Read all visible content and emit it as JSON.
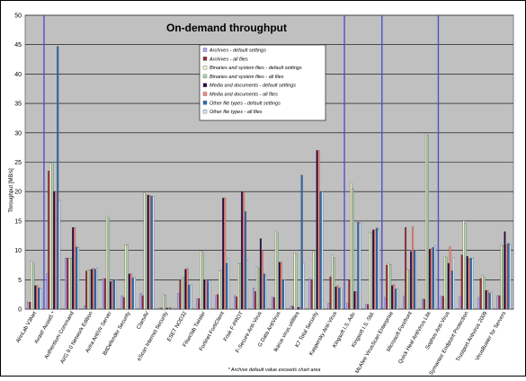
{
  "chart_data": {
    "type": "bar",
    "title": "On-demand throughput",
    "xlabel": "",
    "ylabel": "Throughput [MB/s]",
    "ylim": [
      0,
      50
    ],
    "yticks": [
      0,
      5,
      10,
      15,
      20,
      25,
      30,
      35,
      40,
      45,
      50
    ],
    "grid": true,
    "legend_position": "top-center",
    "footnote": "* Archive default value exceeds chart area",
    "categories": [
      "AhnLab V3Net",
      "Avast! Avast5 *",
      "Authentium Command",
      "AVG 9.0 Network Edition",
      "Avira AntiVir Server",
      "BitDefender Security",
      "ClamAV",
      "eScan Internet Security",
      "ESET NOD32",
      "Filseclab Twister",
      "Fortinet FortiClient",
      "Frisk F-PROT",
      "F-Secure Anti-Virus",
      "G Data AntiVirus",
      "Ikarus virus.utilities",
      "K7 Total Security",
      "Kaspersky Anti-Virus",
      "Kingsoft I.S. Adv.",
      "Kingsoft I.S. Std.",
      "McAfee VirusScan Enterprise",
      "Microsoft Forefront",
      "Quick Heal AntiVirus Lite",
      "Sophos Anti-Virus",
      "Symantec Endpoint Protection",
      "Trustport Antivirus 2009",
      "VirusBuster for Servers"
    ],
    "series": [
      {
        "name": "Archives - default settings",
        "color": "#b3a6ff",
        "values": [
          1.2,
          6.0,
          8.7,
          0.6,
          5.2,
          2.3,
          2.7,
          0.2,
          2.7,
          1.8,
          2.3,
          2.3,
          3.6,
          2.0,
          0.5,
          5.2,
          1.0,
          1.0,
          0.8,
          2.0,
          2.2,
          1.7,
          2.2,
          2.1,
          2.0,
          2.3
        ]
      },
      {
        "name": "Archives - all files",
        "color": "#9c2c3c",
        "values": [
          1.2,
          23.5,
          8.7,
          6.5,
          5.2,
          2.0,
          2.3,
          0.2,
          4.9,
          1.8,
          2.5,
          2.1,
          3.0,
          2.0,
          0.5,
          5.0,
          5.5,
          4.9,
          0.8,
          7.5,
          13.9,
          1.7,
          2.2,
          9.2,
          5.2,
          2.3
        ]
      },
      {
        "name": "Binaries and system files - default settings",
        "color": "#f2f2cc",
        "values": [
          8.2,
          24.9,
          8.7,
          6.6,
          15.8,
          10.9,
          19.8,
          2.5,
          5.2,
          9.9,
          6.5,
          7.7,
          7.3,
          13.3,
          9.6,
          9.8,
          9.2,
          21.5,
          13.1,
          7.8,
          6.8,
          29.9,
          9.0,
          15.0,
          5.7,
          11.0
        ]
      },
      {
        "name": "Binaries and system files - all files",
        "color": "#aed7b5",
        "values": [
          7.7,
          25.0,
          8.7,
          6.7,
          15.5,
          11.0,
          19.5,
          2.4,
          5.5,
          9.7,
          6.7,
          7.8,
          7.0,
          13.0,
          9.4,
          10.0,
          8.8,
          20.5,
          12.9,
          7.6,
          6.6,
          29.6,
          8.8,
          14.6,
          5.4,
          10.8
        ]
      },
      {
        "name": "Media and documents - default settings",
        "color": "#2a0d4a",
        "values": [
          4.0,
          20.0,
          13.9,
          6.8,
          4.7,
          6.0,
          19.4,
          0.2,
          6.8,
          5.0,
          18.9,
          20.0,
          12.0,
          8.0,
          0.3,
          27.0,
          3.8,
          3.0,
          13.5,
          4.0,
          9.8,
          10.2,
          7.8,
          9.0,
          3.2,
          13.2
        ]
      },
      {
        "name": "Media and documents - all files",
        "color": "#ff8a7a",
        "values": [
          4.0,
          20.0,
          13.9,
          6.9,
          4.7,
          6.0,
          19.4,
          0.2,
          6.9,
          5.0,
          18.9,
          20.0,
          10.0,
          8.0,
          0.3,
          27.0,
          4.0,
          3.0,
          13.5,
          4.2,
          14.0,
          10.3,
          10.6,
          8.5,
          3.2,
          11.0
        ]
      },
      {
        "name": "Other file types - default settings",
        "color": "#2e6fb5",
        "values": [
          3.6,
          44.7,
          10.6,
          6.8,
          5.0,
          5.3,
          19.2,
          0.2,
          4.1,
          4.8,
          7.8,
          16.6,
          6.0,
          5.0,
          22.8,
          20.0,
          3.6,
          14.8,
          13.8,
          3.4,
          10.0,
          10.5,
          6.5,
          8.7,
          2.7,
          11.2
        ]
      },
      {
        "name": "Other file types - all files",
        "color": "#cde9ff",
        "values": [
          3.5,
          18.5,
          10.5,
          6.9,
          5.0,
          5.4,
          19.2,
          0.2,
          4.2,
          4.9,
          8.7,
          8.4,
          5.8,
          5.0,
          7.8,
          20.0,
          3.6,
          14.6,
          13.5,
          3.5,
          10.0,
          10.8,
          8.8,
          8.6,
          2.9,
          11.0
        ]
      }
    ]
  }
}
